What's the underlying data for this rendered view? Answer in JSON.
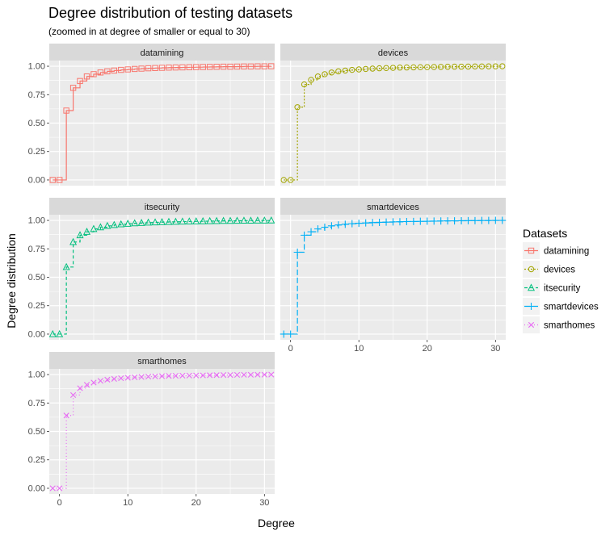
{
  "title": "Degree distribution of testing datasets",
  "subtitle": "(zoomed in at degree of smaller or equal to 30)",
  "legend": {
    "title": "Datasets"
  },
  "chart_data": {
    "type": "line",
    "step": true,
    "title": "Degree distribution of testing datasets",
    "subtitle": "(zoomed in at degree of smaller or equal to 30)",
    "xlabel": "Degree",
    "ylabel": "Degree distribution",
    "xlim": [
      -1.5,
      31.5
    ],
    "ylim": [
      -0.05,
      1.05
    ],
    "x_ticks": [
      0,
      10,
      20,
      30
    ],
    "y_ticks": [
      0.0,
      0.25,
      0.5,
      0.75,
      1.0
    ],
    "y_tick_labels": [
      "0.00",
      "0.25",
      "0.50",
      "0.75",
      "1.00"
    ],
    "grid": true,
    "legend_position": "right",
    "x": [
      -1,
      0,
      1,
      2,
      3,
      4,
      5,
      6,
      7,
      8,
      9,
      10,
      11,
      12,
      13,
      14,
      15,
      16,
      17,
      18,
      19,
      20,
      21,
      22,
      23,
      24,
      25,
      26,
      27,
      28,
      29,
      30,
      31
    ],
    "series": [
      {
        "name": "datamining",
        "color": "#F8766D",
        "marker": "square",
        "dash": "solid",
        "facet": "datamining",
        "values": [
          0,
          0,
          0.61,
          0.81,
          0.87,
          0.91,
          0.93,
          0.945,
          0.955,
          0.962,
          0.968,
          0.972,
          0.976,
          0.979,
          0.982,
          0.984,
          0.986,
          0.988,
          0.989,
          0.99,
          0.991,
          0.992,
          0.993,
          0.994,
          0.995,
          0.996,
          0.996,
          0.997,
          0.998,
          0.998,
          0.999,
          0.999,
          1.0
        ]
      },
      {
        "name": "devices",
        "color": "#A3A500",
        "marker": "circle",
        "dash": "dotted",
        "facet": "devices",
        "values": [
          0,
          0,
          0.64,
          0.84,
          0.88,
          0.91,
          0.93,
          0.945,
          0.955,
          0.962,
          0.968,
          0.972,
          0.976,
          0.979,
          0.982,
          0.984,
          0.986,
          0.988,
          0.989,
          0.99,
          0.991,
          0.992,
          0.993,
          0.994,
          0.995,
          0.996,
          0.996,
          0.997,
          0.998,
          0.998,
          0.999,
          0.999,
          1.0
        ]
      },
      {
        "name": "itsecurity",
        "color": "#00BF7D",
        "marker": "triangle",
        "dash": "dashed",
        "facet": "itsecurity",
        "values": [
          0,
          0,
          0.59,
          0.81,
          0.87,
          0.9,
          0.925,
          0.94,
          0.952,
          0.96,
          0.966,
          0.971,
          0.975,
          0.978,
          0.981,
          0.983,
          0.985,
          0.987,
          0.988,
          0.99,
          0.991,
          0.992,
          0.993,
          0.994,
          0.995,
          0.996,
          0.996,
          0.997,
          0.998,
          0.998,
          0.999,
          0.999,
          1.0
        ]
      },
      {
        "name": "smartdevices",
        "color": "#00B0F6",
        "marker": "plus",
        "dash": "longdash",
        "facet": "smartdevices",
        "values": [
          0,
          0,
          0.72,
          0.87,
          0.9,
          0.925,
          0.94,
          0.952,
          0.96,
          0.966,
          0.971,
          0.975,
          0.978,
          0.981,
          0.983,
          0.985,
          0.987,
          0.988,
          0.99,
          0.991,
          0.992,
          0.993,
          0.994,
          0.995,
          0.996,
          0.996,
          0.997,
          0.998,
          0.998,
          0.999,
          0.999,
          1.0,
          1.0
        ]
      },
      {
        "name": "smarthomes",
        "color": "#E76BF3",
        "marker": "cross",
        "dash": "dotdash",
        "facet": "smarthomes",
        "values": [
          0,
          0,
          0.64,
          0.82,
          0.88,
          0.91,
          0.93,
          0.945,
          0.955,
          0.962,
          0.968,
          0.972,
          0.976,
          0.979,
          0.982,
          0.984,
          0.986,
          0.988,
          0.989,
          0.99,
          0.991,
          0.992,
          0.993,
          0.994,
          0.995,
          0.996,
          0.996,
          0.997,
          0.998,
          0.998,
          0.999,
          0.999,
          1.0
        ]
      }
    ]
  }
}
